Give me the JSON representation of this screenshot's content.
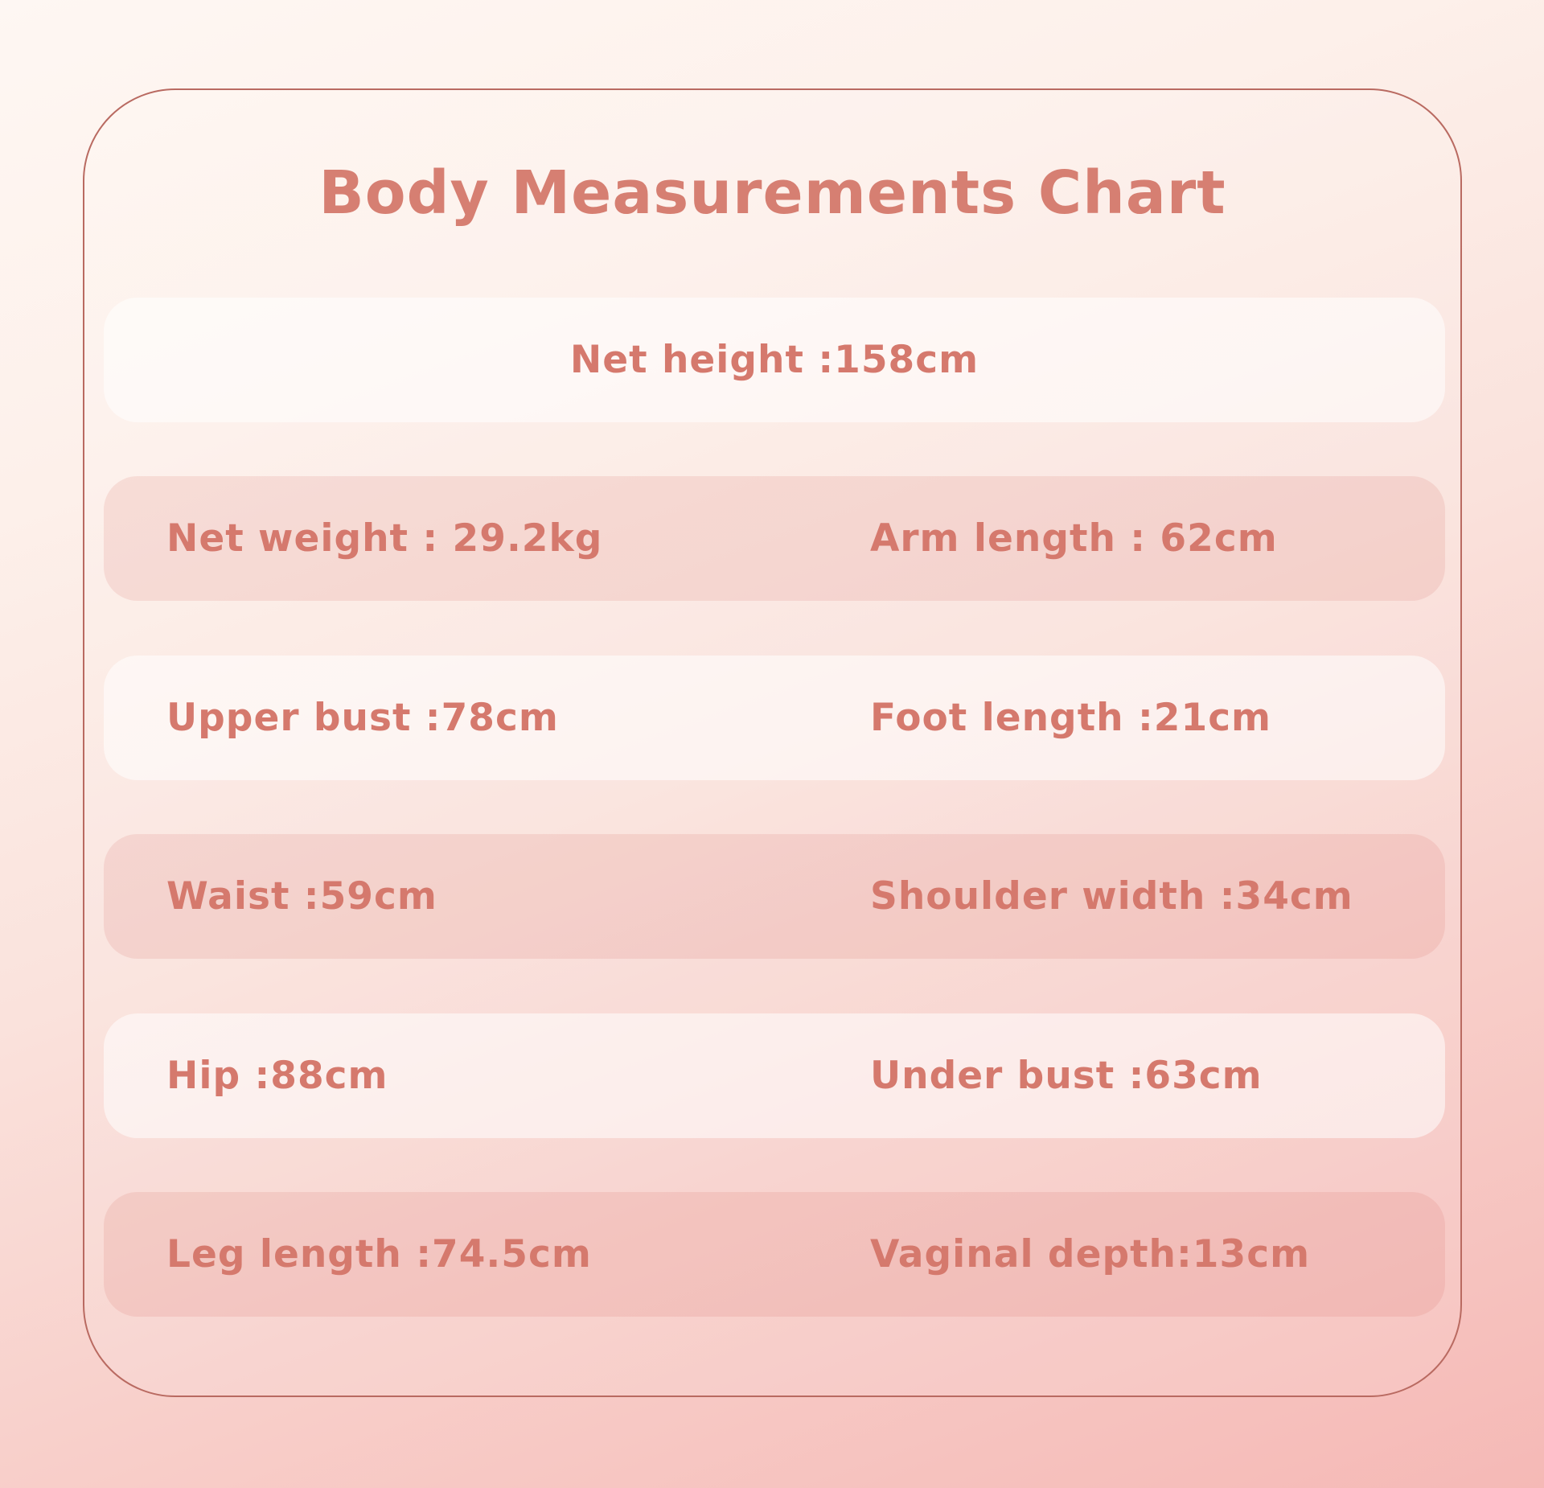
{
  "title": "Body Measurements Chart",
  "rows": [
    {
      "shade": "light",
      "center": "Net height :158cm"
    },
    {
      "shade": "dark",
      "left": "Net weight : 29.2kg",
      "right": "Arm length : 62cm"
    },
    {
      "shade": "light",
      "left": "Upper bust :78cm",
      "right": "Foot length :21cm"
    },
    {
      "shade": "dark",
      "left": "Waist :59cm",
      "right": "Shoulder width :34cm"
    },
    {
      "shade": "light",
      "left": "Hip :88cm",
      "right": "Under bust :63cm"
    },
    {
      "shade": "dark",
      "left": "Leg length :74.5cm",
      "right": "Vaginal depth:13cm"
    }
  ],
  "colors": {
    "accent_text": "#d5796d",
    "title_text": "#d67f72",
    "card_border": "#b96a61",
    "background_top": "#fef7f3",
    "background_bottom": "#f5b9b6",
    "row_dark_tint": "rgba(211,100,90,0.14)",
    "row_light_tint": "rgba(255,255,255,0.55)"
  },
  "chart_data": {
    "type": "table",
    "title": "Body Measurements Chart",
    "measurements": [
      {
        "label": "Net height",
        "value": 158,
        "unit": "cm"
      },
      {
        "label": "Net weight",
        "value": 29.2,
        "unit": "kg"
      },
      {
        "label": "Arm length",
        "value": 62,
        "unit": "cm"
      },
      {
        "label": "Upper bust",
        "value": 78,
        "unit": "cm"
      },
      {
        "label": "Foot length",
        "value": 21,
        "unit": "cm"
      },
      {
        "label": "Waist",
        "value": 59,
        "unit": "cm"
      },
      {
        "label": "Shoulder width",
        "value": 34,
        "unit": "cm"
      },
      {
        "label": "Hip",
        "value": 88,
        "unit": "cm"
      },
      {
        "label": "Under bust",
        "value": 63,
        "unit": "cm"
      },
      {
        "label": "Leg length",
        "value": 74.5,
        "unit": "cm"
      },
      {
        "label": "Vaginal depth",
        "value": 13,
        "unit": "cm"
      }
    ]
  }
}
